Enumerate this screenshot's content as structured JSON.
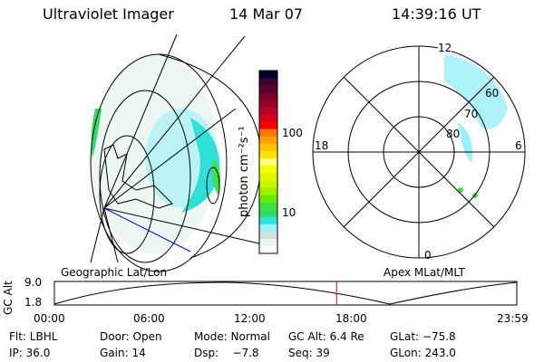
{
  "header": {
    "instrument": "Ultraviolet Imager",
    "date": "14 Mar 07",
    "time": "14:39:16 UT"
  },
  "colorbar": {
    "label": "photon cm⁻²s⁻¹",
    "ticks": [
      "100",
      "10"
    ],
    "colors": [
      "#000030",
      "#3a0030",
      "#5a0030",
      "#7a0030",
      "#98002a",
      "#b80028",
      "#dc0020",
      "#ff0000",
      "#ff7a00",
      "#ffa000",
      "#ffc400",
      "#ffe000",
      "#ffff80",
      "#f8ff00",
      "#e0f800",
      "#c8f800",
      "#a0f400",
      "#68ec00",
      "#40e040",
      "#30dc68",
      "#30e0d8",
      "#98f0f8",
      "#d0e0e0",
      "#e8f4f0",
      "#ffffff"
    ]
  },
  "polar": {
    "mlt_labels": [
      "12",
      "18",
      "6",
      "0"
    ],
    "lat_labels": [
      "80",
      "70",
      "60"
    ]
  },
  "panel_labels": {
    "left": "Geographic Lat/Lon",
    "right": "Apex MLat/MLT"
  },
  "altitude_plot": {
    "ylabel": "GC Alt",
    "yticks": [
      "9.0",
      "1.8"
    ],
    "xticks": [
      "00:00",
      "06:00",
      "12:00",
      "18:00",
      "23:59"
    ],
    "current_time_hours": 14.65,
    "marker_color": "#ff0000"
  },
  "info": {
    "row1": [
      "Flt: LBHL",
      "Door: Open",
      "Mode: Normal",
      "GC Alt: 6.4 Re",
      "GLat: −75.8"
    ],
    "row2": [
      "IP: 36.0",
      "Gain: 14",
      "Dsp:    −7.8",
      "Seq: 39",
      "GLon: 243.0"
    ]
  }
}
